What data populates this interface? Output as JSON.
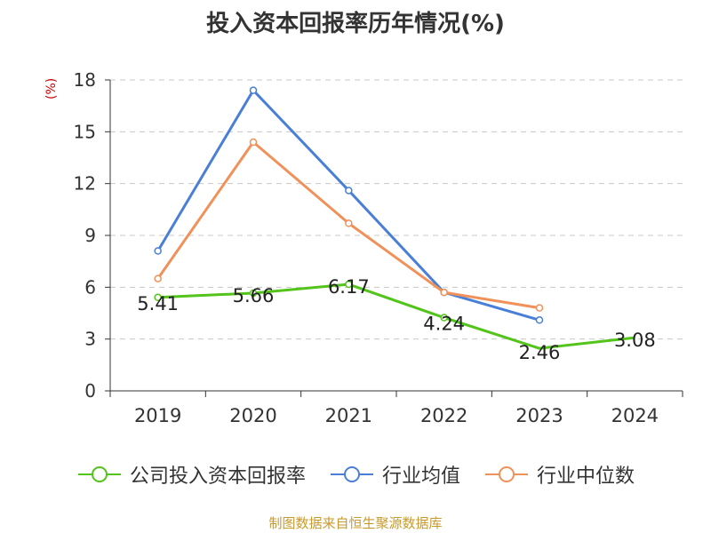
{
  "chart_data": {
    "type": "line",
    "title": "投入资本回报率历年情况(%)",
    "ylabel": "(%)",
    "xlabel": "",
    "categories": [
      "2019",
      "2020",
      "2021",
      "2022",
      "2023",
      "2024"
    ],
    "ylim": [
      0,
      18
    ],
    "yticks": [
      0,
      3,
      6,
      9,
      12,
      15,
      18
    ],
    "grid": true,
    "legend_position": "bottom",
    "series": [
      {
        "name": "公司投入资本回报率",
        "color": "#52c41a",
        "values": [
          5.41,
          5.66,
          6.17,
          4.24,
          2.46,
          3.08
        ],
        "labels": [
          "5.41",
          "5.66",
          "6.17",
          "4.24",
          "2.46",
          "3.08"
        ]
      },
      {
        "name": "行业均值",
        "color": "#4a7fd8",
        "values": [
          8.1,
          17.4,
          11.6,
          5.7,
          4.1,
          null
        ]
      },
      {
        "name": "行业中位数",
        "color": "#f0915a",
        "values": [
          6.5,
          14.4,
          9.7,
          5.7,
          4.8,
          null
        ]
      }
    ]
  },
  "footer": {
    "source": "制图数据来自恒生聚源数据库"
  }
}
